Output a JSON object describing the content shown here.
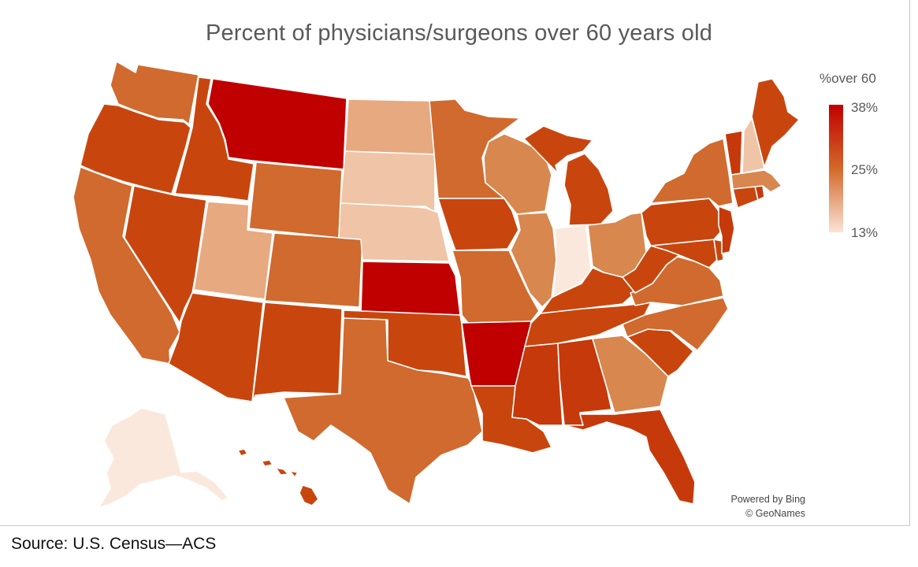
{
  "title": "Percent of physicians/surgeons over 60 years old",
  "legend": {
    "title": "%over 60",
    "max_label": "38%",
    "mid_label": "25%",
    "min_label": "13%",
    "color_max": "#c00000",
    "color_mid": "#d2692a",
    "color_min": "#fbe3d6"
  },
  "attribution": {
    "line1": "Powered by Bing",
    "line2": "© GeoNames"
  },
  "source": "Source: U.S. Census—ACS",
  "palette": {
    "darkest": "#c00000",
    "dark": "#c6390a",
    "medium_dark": "#c8460e",
    "medium": "#d06a2e",
    "medium_light": "#d8874f",
    "light": "#e7a97f",
    "lighter": "#f0c4a6",
    "lightest": "#f9e1d3",
    "pale": "#fbe8dd"
  },
  "states": [
    {
      "name": "Washington",
      "tone": "medium"
    },
    {
      "name": "Oregon",
      "tone": "medium_dark"
    },
    {
      "name": "California",
      "tone": "medium"
    },
    {
      "name": "Idaho",
      "tone": "medium_dark"
    },
    {
      "name": "Nevada",
      "tone": "medium_dark"
    },
    {
      "name": "Montana",
      "tone": "darkest"
    },
    {
      "name": "Wyoming",
      "tone": "medium"
    },
    {
      "name": "Utah",
      "tone": "light"
    },
    {
      "name": "Arizona",
      "tone": "medium_dark"
    },
    {
      "name": "Colorado",
      "tone": "medium"
    },
    {
      "name": "New Mexico",
      "tone": "medium_dark"
    },
    {
      "name": "North Dakota",
      "tone": "light"
    },
    {
      "name": "South Dakota",
      "tone": "lighter"
    },
    {
      "name": "Nebraska",
      "tone": "lighter"
    },
    {
      "name": "Kansas",
      "tone": "darkest"
    },
    {
      "name": "Oklahoma",
      "tone": "medium_dark"
    },
    {
      "name": "Texas",
      "tone": "medium"
    },
    {
      "name": "Minnesota",
      "tone": "medium"
    },
    {
      "name": "Iowa",
      "tone": "medium_dark"
    },
    {
      "name": "Missouri",
      "tone": "medium"
    },
    {
      "name": "Arkansas",
      "tone": "darkest"
    },
    {
      "name": "Louisiana",
      "tone": "medium_dark"
    },
    {
      "name": "Wisconsin",
      "tone": "medium_light"
    },
    {
      "name": "Illinois",
      "tone": "medium_light"
    },
    {
      "name": "Michigan",
      "tone": "medium_dark"
    },
    {
      "name": "Indiana",
      "tone": "pale"
    },
    {
      "name": "Ohio",
      "tone": "medium_light"
    },
    {
      "name": "Kentucky",
      "tone": "medium_dark"
    },
    {
      "name": "Tennessee",
      "tone": "medium_dark"
    },
    {
      "name": "Mississippi",
      "tone": "dark"
    },
    {
      "name": "Alabama",
      "tone": "dark"
    },
    {
      "name": "Georgia",
      "tone": "medium_light"
    },
    {
      "name": "Florida",
      "tone": "dark"
    },
    {
      "name": "South Carolina",
      "tone": "medium_dark"
    },
    {
      "name": "North Carolina",
      "tone": "medium"
    },
    {
      "name": "Virginia",
      "tone": "medium"
    },
    {
      "name": "West Virginia",
      "tone": "medium_dark"
    },
    {
      "name": "Maryland",
      "tone": "medium_dark"
    },
    {
      "name": "Delaware",
      "tone": "medium_dark"
    },
    {
      "name": "Pennsylvania",
      "tone": "medium_dark"
    },
    {
      "name": "New Jersey",
      "tone": "dark"
    },
    {
      "name": "New York",
      "tone": "medium"
    },
    {
      "name": "Connecticut",
      "tone": "medium_dark"
    },
    {
      "name": "Rhode Island",
      "tone": "dark"
    },
    {
      "name": "Massachusetts",
      "tone": "medium_light"
    },
    {
      "name": "Vermont",
      "tone": "dark"
    },
    {
      "name": "New Hampshire",
      "tone": "lighter"
    },
    {
      "name": "Maine",
      "tone": "medium_dark"
    },
    {
      "name": "Alaska",
      "tone": "pale"
    },
    {
      "name": "Hawaii",
      "tone": "medium_dark"
    }
  ]
}
